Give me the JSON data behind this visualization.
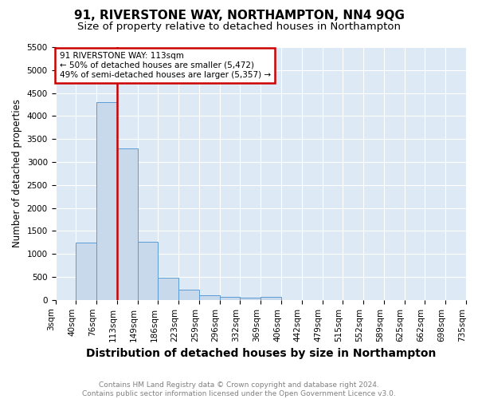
{
  "title": "91, RIVERSTONE WAY, NORTHAMPTON, NN4 9QG",
  "subtitle": "Size of property relative to detached houses in Northampton",
  "xlabel": "Distribution of detached houses by size in Northampton",
  "ylabel": "Number of detached properties",
  "bin_edges": [
    3,
    40,
    76,
    113,
    149,
    186,
    223,
    259,
    296,
    332,
    369,
    406,
    442,
    479,
    515,
    552,
    589,
    625,
    662,
    698,
    735
  ],
  "bin_labels": [
    "3sqm",
    "40sqm",
    "76sqm",
    "113sqm",
    "149sqm",
    "186sqm",
    "223sqm",
    "259sqm",
    "296sqm",
    "332sqm",
    "369sqm",
    "406sqm",
    "442sqm",
    "479sqm",
    "515sqm",
    "552sqm",
    "589sqm",
    "625sqm",
    "662sqm",
    "698sqm",
    "735sqm"
  ],
  "bar_values": [
    0,
    1250,
    4300,
    3300,
    1270,
    490,
    220,
    100,
    60,
    50,
    60,
    0,
    0,
    0,
    0,
    0,
    0,
    0,
    0,
    0
  ],
  "bar_color": "#c9d9ec",
  "bar_edge_color": "#5b9bd5",
  "red_line_bin_index": 3,
  "annotation_text": "91 RIVERSTONE WAY: 113sqm\n← 50% of detached houses are smaller (5,472)\n49% of semi-detached houses are larger (5,357) →",
  "annotation_box_facecolor": "#ffffff",
  "annotation_box_edgecolor": "#cc0000",
  "ylim": [
    0,
    5500
  ],
  "yticks": [
    0,
    500,
    1000,
    1500,
    2000,
    2500,
    3000,
    3500,
    4000,
    4500,
    5000,
    5500
  ],
  "bg_color": "#ddeaf5",
  "grid_color": "#ffffff",
  "footer": "Contains HM Land Registry data © Crown copyright and database right 2024.\nContains public sector information licensed under the Open Government Licence v3.0.",
  "title_fontsize": 11,
  "subtitle_fontsize": 9.5,
  "xlabel_fontsize": 10,
  "ylabel_fontsize": 8.5,
  "tick_fontsize": 7.5,
  "footer_fontsize": 6.5
}
